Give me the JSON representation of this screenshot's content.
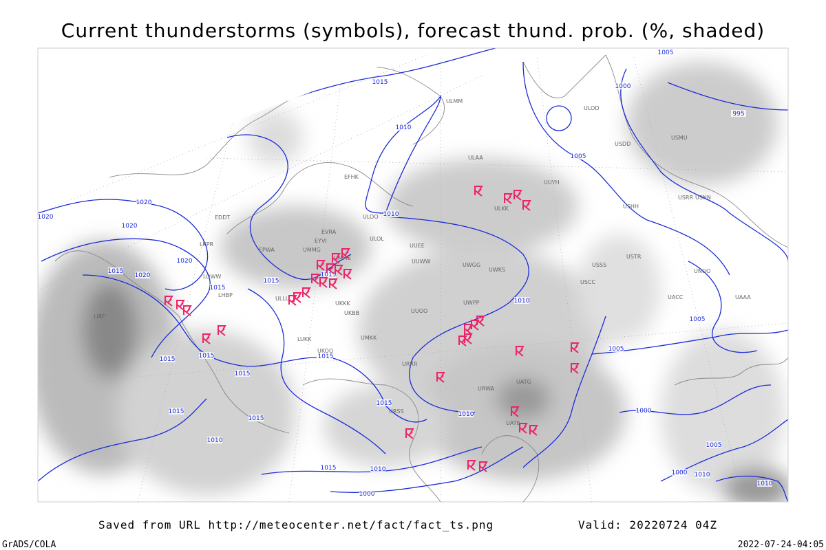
{
  "header": {
    "title": "Current thunderstorms (symbols), forecast thund. prob. (%, shaded)"
  },
  "isobar_labels": [
    "1015",
    "1015",
    "1010",
    "1005",
    "1000",
    "995",
    "1005",
    "1020",
    "1020",
    "1020",
    "1020",
    "1015",
    "1020",
    "1015",
    "1015",
    "1015",
    "1010",
    "1010",
    "1015",
    "1015",
    "1015",
    "1015",
    "1015",
    "1015",
    "1015",
    "1010",
    "1010",
    "1015",
    "1010",
    "1000",
    "1005",
    "1000",
    "1005",
    "1000",
    "1010",
    "1010",
    "1005"
  ],
  "station_labels": [
    "ULLL",
    "ULOO",
    "ULOL",
    "UUEE",
    "UUWW",
    "UWGG",
    "UWKS",
    "UWPP",
    "UUOO",
    "ULAA",
    "ULKK",
    "UUYH",
    "USHH",
    "USSS",
    "USCC",
    "USTR",
    "UNOO",
    "UACC",
    "UAAA",
    "UATG",
    "UATE",
    "URWA",
    "URRR",
    "URSS",
    "UKKK",
    "UKOO",
    "EVRA",
    "EYVI",
    "UMMG",
    "UMMS",
    "UKBB",
    "LUKK",
    "LHBP",
    "LOWW",
    "EPWA",
    "LKPR",
    "EDDT",
    "LIRF",
    "UMKK",
    "ULMM",
    "EFHK",
    "ULOD",
    "USMU",
    "USRR",
    "USNN",
    "USDD"
  ],
  "footer": {
    "source": "Saved from URL http://meteocenter.net/fact/fact_ts.png",
    "valid": "Valid: 20220724 04Z",
    "credit": "GrADS/COLA",
    "timestamp": "2022-07-24-04:05"
  }
}
